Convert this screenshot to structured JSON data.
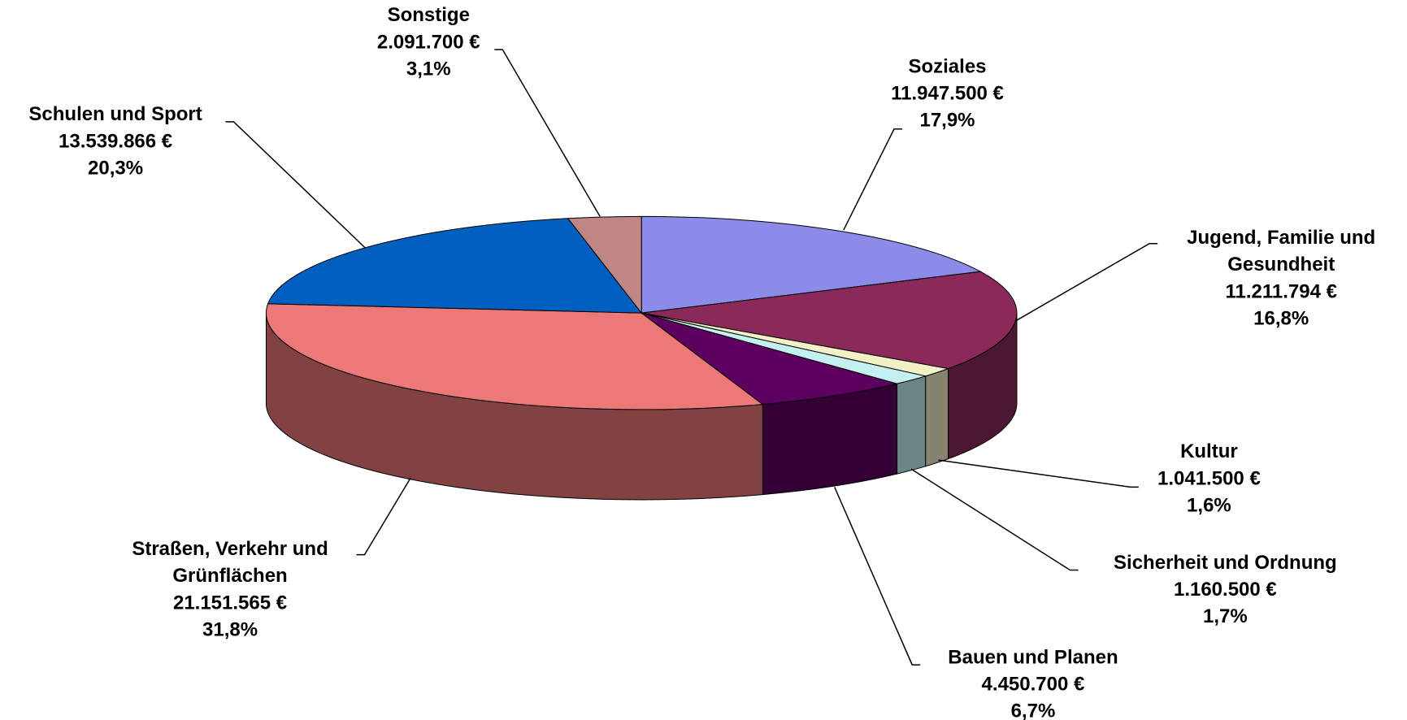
{
  "chart_data": {
    "type": "pie3d",
    "categories": [
      "Soziales",
      "Jugend, Familie und Gesundheit",
      "Kultur",
      "Sicherheit und Ordnung",
      "Bauen und Planen",
      "Straßen, Verkehr und Grünflächen",
      "Schulen und Sport",
      "Sonstige"
    ],
    "values": [
      11947500,
      11211794,
      1041500,
      1160500,
      4450700,
      21151565,
      13539866,
      2091700
    ],
    "value_labels": [
      "11.947.500 €",
      "11.211.794 €",
      "1.041.500 €",
      "1.160.500 €",
      "4.450.700 €",
      "21.151.565 €",
      "13.539.866 €",
      "2.091.700 €"
    ],
    "percentages": [
      17.9,
      16.8,
      1.6,
      1.7,
      6.7,
      31.8,
      20.3,
      3.1
    ],
    "percentage_labels": [
      "17,9%",
      "16,8%",
      "1,6%",
      "1,7%",
      "6,7%",
      "31,8%",
      "20,3%",
      "3,1%"
    ],
    "colors": [
      "#8b8bea",
      "#8b2a5a",
      "#f3f0c8",
      "#c4f0f0",
      "#5e0060",
      "#ec7878",
      "#005fbf",
      "#c08585"
    ]
  }
}
